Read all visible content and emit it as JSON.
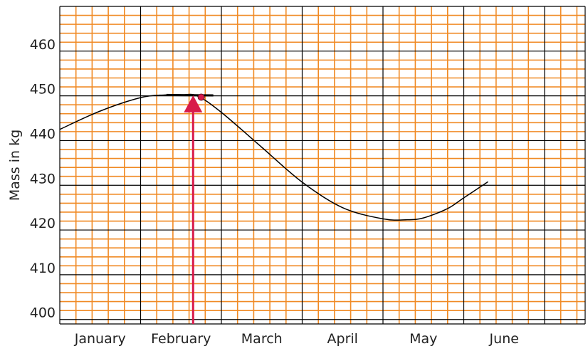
{
  "chart_data": {
    "type": "line",
    "title": "",
    "xlabel": "",
    "ylabel": "Mass in kg",
    "categories": [
      "January",
      "February",
      "March",
      "April",
      "May",
      "June"
    ],
    "ylim": [
      399,
      470
    ],
    "yticks": [
      400,
      410,
      420,
      430,
      440,
      450,
      460
    ],
    "grid": true,
    "series": [
      {
        "x": [
          0.0,
          0.5,
          1.0,
          1.3,
          1.5,
          1.7,
          2.0,
          2.5,
          3.0,
          3.5,
          4.0,
          4.3,
          4.5,
          4.8,
          5.0,
          5.3
        ],
        "values": [
          442.5,
          446.6,
          449.6,
          450.2,
          450.2,
          450.0,
          446.3,
          438.5,
          430.7,
          425.0,
          422.5,
          422.3,
          422.7,
          424.8,
          427.2,
          430.8
        ]
      }
    ],
    "marker": {
      "x": 1.75,
      "y": 449.7
    },
    "arrow": {
      "x": 1.65,
      "y": 449.8
    },
    "colors": {
      "grid_minor": "#f08a24",
      "grid_major": "#000000",
      "curve": "#000000",
      "highlight": "#d81b4a"
    }
  }
}
